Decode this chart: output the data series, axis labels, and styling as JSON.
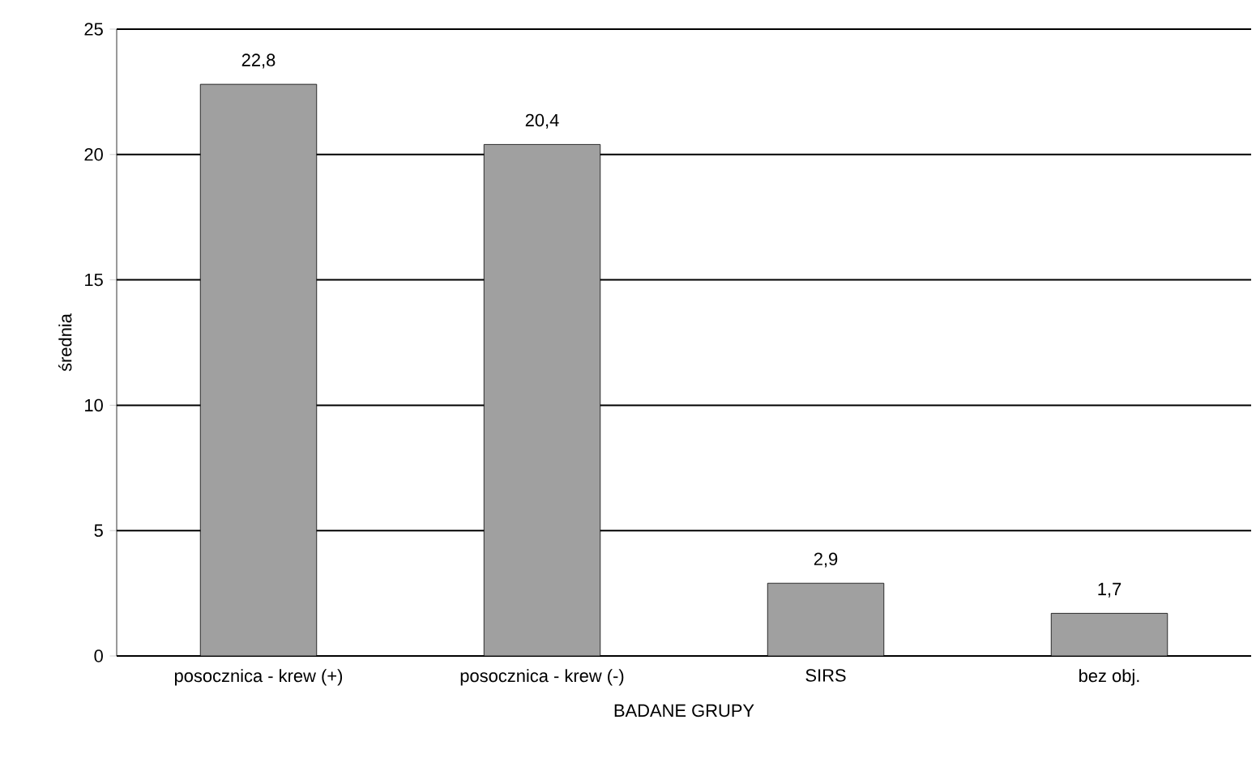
{
  "chart_data": {
    "type": "bar",
    "xlabel": "BADANE GRUPY",
    "ylabel": "średnia",
    "categories": [
      "posocznica - krew (+)",
      "posocznica - krew (-)",
      "SIRS",
      "bez obj."
    ],
    "values": [
      22.8,
      20.4,
      2.9,
      1.7
    ],
    "color": "#a0a0a0",
    "value_labels": [
      "22,8",
      "20,4",
      "2,9",
      "1,7"
    ],
    "ylim": [
      0,
      25
    ],
    "yticks": [
      0,
      5,
      10,
      15,
      20,
      25
    ],
    "grid": "y"
  }
}
